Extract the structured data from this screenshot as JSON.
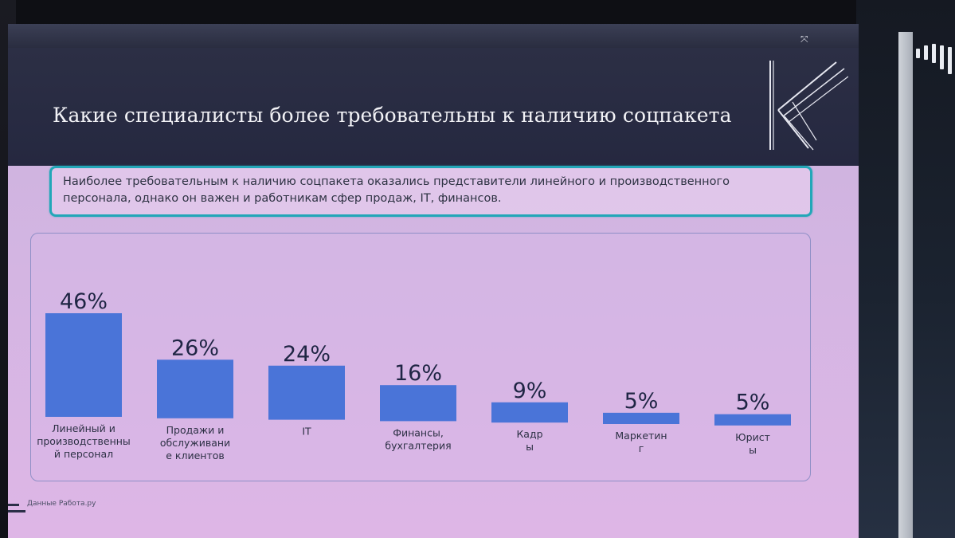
{
  "slide": {
    "title": "Какие специалисты более требовательны к наличию соцпакета",
    "callout": "Наиболее требовательным к наличию соцпакета оказались представители линейного и производственного персонала, однако он важен и работникам сфер продаж, IT, финансов.",
    "source": "Данные Работа.ру",
    "expand_icon": "expand-icon"
  },
  "colors": {
    "bar": "#4a74d8",
    "header": "#2a2d42",
    "callout_border": "#22a7b8",
    "value_label": "#1f2544"
  },
  "chart_data": {
    "type": "bar",
    "title": "",
    "xlabel": "",
    "ylabel": "",
    "ylim": [
      0,
      50
    ],
    "grid": false,
    "legend": "none",
    "categories": [
      [
        "Линейный и",
        "производственны",
        "й персонал"
      ],
      [
        "Продажи и",
        "обслуживани",
        "е клиентов"
      ],
      [
        "IT"
      ],
      [
        "Финансы,",
        "бухгалтерия"
      ],
      [
        "Кадр",
        "ы"
      ],
      [
        "Маркетин",
        "г"
      ],
      [
        "Юрист",
        "ы"
      ]
    ],
    "values": [
      46,
      26,
      24,
      16,
      9,
      5,
      5
    ],
    "value_labels": [
      "46%",
      "26%",
      "24%",
      "16%",
      "9%",
      "5%",
      "5%"
    ]
  }
}
